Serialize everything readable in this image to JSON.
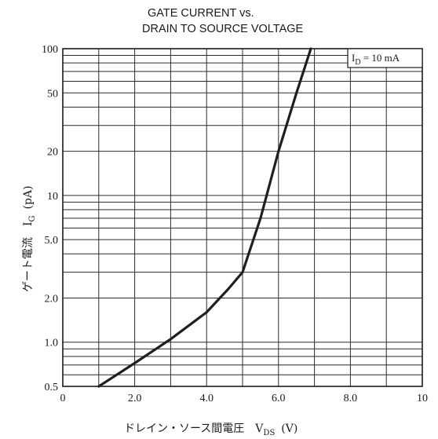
{
  "chart_data": {
    "type": "line",
    "title_line1": "GATE CURRENT vs.",
    "title_line2": "DRAIN TO SOURCE VOLTAGE",
    "xlabel": {
      "main": "ドレイン・ソース間電圧　V",
      "sub": "DS",
      "unit": "(V)"
    },
    "ylabel": {
      "main": "ゲート電流　I",
      "sub": "G",
      "unit": "(pA)"
    },
    "x_scale": "linear",
    "y_scale": "log",
    "xlim": [
      0,
      10
    ],
    "ylim": [
      0.5,
      100
    ],
    "x_ticks": [
      {
        "value": 0,
        "label": "0"
      },
      {
        "value": 2,
        "label": "2.0"
      },
      {
        "value": 4,
        "label": "4.0"
      },
      {
        "value": 6,
        "label": "6.0"
      },
      {
        "value": 8,
        "label": "8.0"
      },
      {
        "value": 10,
        "label": "10"
      }
    ],
    "y_ticks": [
      {
        "value": 0.5,
        "label": "0.5"
      },
      {
        "value": 1,
        "label": "1.0"
      },
      {
        "value": 2,
        "label": "2.0"
      },
      {
        "value": 5,
        "label": "5.0"
      },
      {
        "value": 10,
        "label": "10"
      },
      {
        "value": 20,
        "label": "20"
      },
      {
        "value": 50,
        "label": "50"
      },
      {
        "value": 100,
        "label": "100"
      }
    ],
    "x_grid": [
      1,
      2,
      3,
      4,
      5,
      6,
      7,
      8,
      9
    ],
    "y_grid": [
      0.6,
      0.7,
      0.8,
      0.9,
      1,
      2,
      3,
      4,
      5,
      6,
      7,
      8,
      9,
      10,
      20,
      30,
      40,
      50,
      60,
      70,
      80,
      90
    ],
    "grid": true,
    "legend": {
      "position": "top-right",
      "main": "I",
      "sub": "D",
      "rest": " = 10 mA"
    },
    "series": [
      {
        "x": [
          1.0,
          2.0,
          3.0,
          4.0,
          4.6,
          5.0,
          5.5,
          6.0,
          6.5,
          6.9
        ],
        "y": [
          0.5,
          0.72,
          1.05,
          1.6,
          2.3,
          3.0,
          7.0,
          20,
          50,
          100
        ]
      }
    ]
  }
}
